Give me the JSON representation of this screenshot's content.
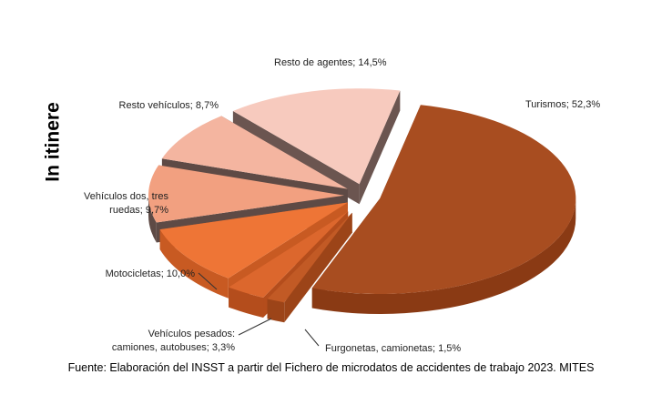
{
  "chart_data": {
    "type": "pie",
    "ylabel": "In itinere",
    "style": "exploded 3D pie",
    "slices": [
      {
        "label": "Turismos",
        "value": 52.3,
        "display": "Turismos; 52,3%",
        "color": "#A84D20",
        "side": "#8A3A14"
      },
      {
        "label": "Furgonetas, camionetas",
        "value": 1.5,
        "display": "Furgonetas, camionetas; 1,5%",
        "color": "#C25A25",
        "side": "#9C4418"
      },
      {
        "label": "Vehículos pesados: camiones, autobuses",
        "value": 3.3,
        "display": "Vehículos pesados: camiones, autobuses; 3,3%",
        "display_lines": [
          "Vehículos pesados:",
          "camiones, autobuses; 3,3%"
        ],
        "color": "#DC672D",
        "side": "#B44D1C"
      },
      {
        "label": "Motocicletas",
        "value": 10.0,
        "display": "Motocicletas; 10,0%",
        "color": "#EE7536",
        "side": "#C85A22"
      },
      {
        "label": "Vehículos dos, tres ruedas",
        "value": 9.7,
        "display": "Vehículos dos, tres ruedas; 9,7%",
        "display_lines": [
          "Vehículos dos, tres",
          "ruedas; 9,7%"
        ],
        "color": "#F2A080",
        "side": "#5E4A45"
      },
      {
        "label": "Resto vehículos",
        "value": 8.7,
        "display": "Resto vehículos; 8,7%",
        "color": "#F4B5A0",
        "side": "#5E4A45"
      },
      {
        "label": "Resto de agentes",
        "value": 14.5,
        "display": "Resto de agentes; 14,5%",
        "color": "#F7CABE",
        "side": "#6B5550"
      }
    ]
  },
  "footer": {
    "source": "Fuente: Elaboración del INSST a partir del Fichero de microdatos de accidentes de trabajo 2023. MITES"
  }
}
